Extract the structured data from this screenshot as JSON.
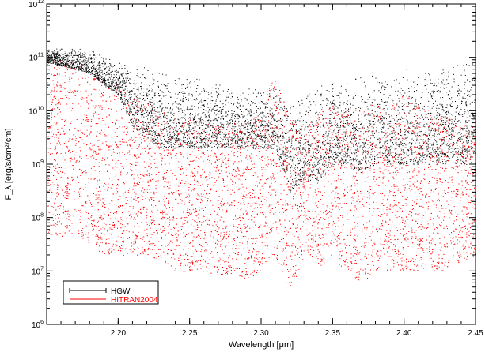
{
  "chart_data": {
    "type": "scatter",
    "title": "",
    "xlabel": "Wavelength [μm]",
    "ylabel": "F_λ [erg/s/cm²/cm]",
    "xlim": [
      2.15,
      2.45
    ],
    "ylim": [
      1000000,
      1000000000000
    ],
    "yscale": "log",
    "grid": false,
    "legend_position": "bottom-left",
    "x_ticks": [
      2.2,
      2.25,
      2.3,
      2.35,
      2.4,
      2.45
    ],
    "x_tick_labels": [
      "2.20",
      "2.25",
      "2.30",
      "2.35",
      "2.40",
      "2.45"
    ],
    "y_ticks": [
      1000000,
      10000000,
      100000000,
      1000000000,
      10000000000,
      100000000000,
      1000000000000
    ],
    "y_tick_labels": [
      {
        "base": "10",
        "exp": "6"
      },
      {
        "base": "10",
        "exp": "7"
      },
      {
        "base": "10",
        "exp": "8"
      },
      {
        "base": "10",
        "exp": "9"
      },
      {
        "base": "10",
        "exp": "10"
      },
      {
        "base": "10",
        "exp": "11"
      },
      {
        "base": "10",
        "exp": "12"
      }
    ],
    "series": [
      {
        "name": "HGW",
        "color": "#000000",
        "marker": "plus",
        "x": [
          2.15,
          2.16,
          2.17,
          2.18,
          2.19,
          2.2,
          2.21,
          2.22,
          2.23,
          2.24,
          2.25,
          2.26,
          2.27,
          2.28,
          2.29,
          2.3,
          2.31,
          2.32,
          2.33,
          2.34,
          2.35,
          2.36,
          2.37,
          2.38,
          2.39,
          2.4,
          2.41,
          2.42,
          2.43,
          2.44,
          2.45
        ],
        "top": [
          150000000000.0,
          150000000000.0,
          150000000000.0,
          140000000000.0,
          120000000000.0,
          90000000000.0,
          80000000000.0,
          70000000000.0,
          60000000000.0,
          50000000000.0,
          45000000000.0,
          40000000000.0,
          35000000000.0,
          30000000000.0,
          35000000000.0,
          35000000000.0,
          30000000000.0,
          15000000000.0,
          20000000000.0,
          30000000000.0,
          40000000000.0,
          50000000000.0,
          45000000000.0,
          60000000000.0,
          55000000000.0,
          60000000000.0,
          65000000000.0,
          70000000000.0,
          80000000000.0,
          90000000000.0,
          100000000000.0
        ],
        "bottom": [
          80000000000.0,
          70000000000.0,
          60000000000.0,
          50000000000.0,
          30000000000.0,
          20000000000.0,
          5000000000.0,
          3000000000.0,
          2000000000.0,
          2000000000.0,
          2000000000.0,
          2000000000.0,
          2000000000.0,
          2000000000.0,
          2000000000.0,
          2000000000.0,
          2000000000.0,
          300000000.0,
          500000000.0,
          500000000.0,
          1000000000.0,
          1000000000.0,
          700000000.0,
          1000000000.0,
          1000000000.0,
          1000000000.0,
          1000000000.0,
          1000000000.0,
          1000000000.0,
          1000000000.0,
          1000000000.0
        ]
      },
      {
        "name": "HITRAN2004",
        "color": "#ff0000",
        "marker": "dot",
        "x": [
          2.15,
          2.16,
          2.17,
          2.18,
          2.19,
          2.2,
          2.21,
          2.22,
          2.23,
          2.24,
          2.25,
          2.26,
          2.27,
          2.28,
          2.29,
          2.3,
          2.31,
          2.32,
          2.33,
          2.34,
          2.35,
          2.36,
          2.37,
          2.38,
          2.39,
          2.4,
          2.41,
          2.42,
          2.43,
          2.44,
          2.45
        ],
        "top": [
          100000000000.0,
          100000000000.0,
          80000000000.0,
          60000000000.0,
          40000000000.0,
          30000000000.0,
          20000000000.0,
          15000000000.0,
          10000000000.0,
          8000000000.0,
          7000000000.0,
          6000000000.0,
          6000000000.0,
          6000000000.0,
          7000000000.0,
          10000000000.0,
          60000000000.0,
          8000000000.0,
          5000000000.0,
          10000000000.0,
          15000000000.0,
          12000000000.0,
          10000000000.0,
          15000000000.0,
          12000000000.0,
          20000000000.0,
          15000000000.0,
          10000000000.0,
          8000000000.0,
          6000000000.0,
          5000000000.0
        ],
        "bottom": [
          50000000.0,
          40000000.0,
          50000000.0,
          30000000.0,
          20000000.0,
          20000000.0,
          20000000.0,
          20000000.0,
          15000000.0,
          10000000.0,
          10000000.0,
          10000000.0,
          8000000.0,
          8000000.0,
          7000000.0,
          10000000.0,
          20000000.0,
          3000000.0,
          20000000.0,
          10000000.0,
          20000000.0,
          8000000.0,
          6000000.0,
          10000000.0,
          10000000.0,
          10000000.0,
          10000000.0,
          10000000.0,
          10000000.0,
          15000000.0,
          20000000.0
        ]
      }
    ]
  }
}
